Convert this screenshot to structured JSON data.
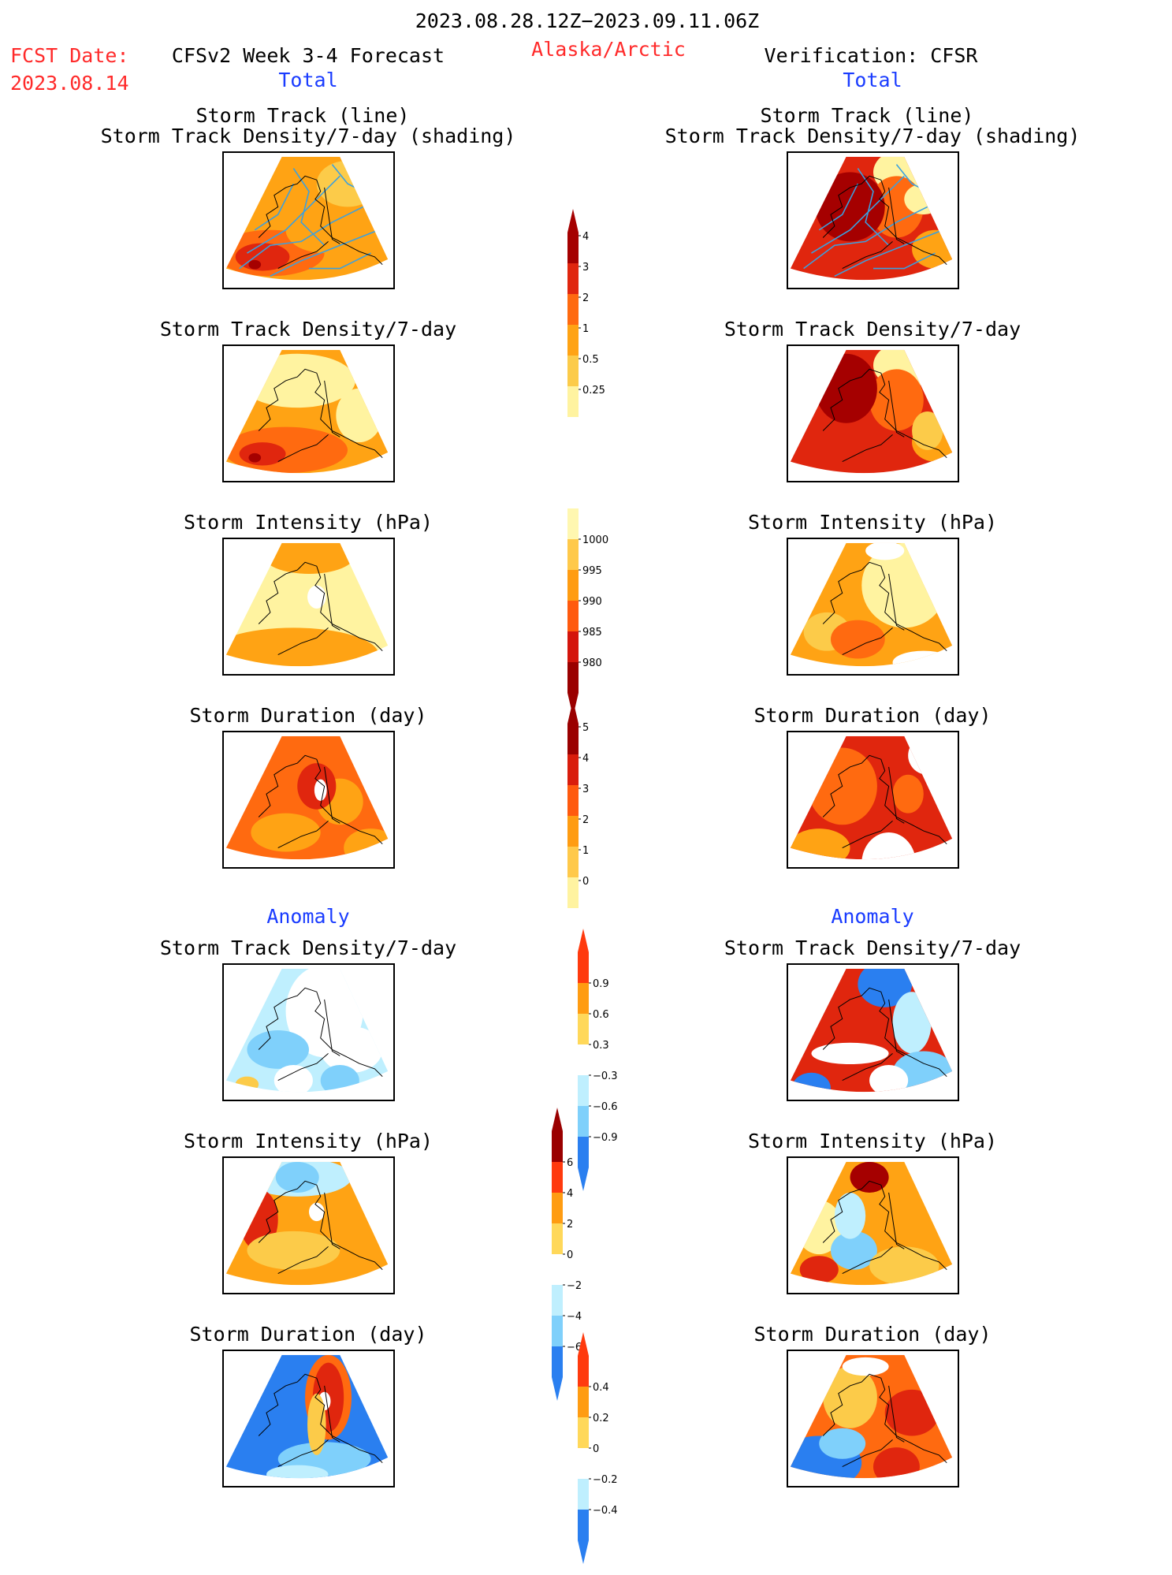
{
  "header": {
    "period": "2023.08.28.12Z−2023.09.11.06Z",
    "fcst_label": "FCST Date:",
    "fcst_date": "2023.08.14",
    "model": "CFSv2 Week 3-4 Forecast",
    "region": "Alaska/Arctic",
    "verification": "Verification: CFSR"
  },
  "sections": {
    "total_left": "Total",
    "total_right": "Total",
    "anomaly_left": "Anomaly",
    "anomaly_right": "Anomaly"
  },
  "titles": {
    "track_line": "Storm Track (line)",
    "track_shading": "Storm Track Density/7-day (shading)",
    "density": "Storm Track Density/7-day",
    "intensity": "Storm Intensity (hPa)",
    "duration": "Storm Duration (day)"
  },
  "colorbars": {
    "density_total": {
      "labels": [
        "4",
        "3",
        "2",
        "1",
        "0.5",
        "0.25"
      ],
      "colors": [
        "#a50000",
        "#e0260e",
        "#ff6a10",
        "#ffa314",
        "#fccb49",
        "#fff3a0"
      ]
    },
    "intensity_total": {
      "labels": [
        "1000",
        "995",
        "990",
        "985",
        "980"
      ],
      "colors": [
        "#fff7b0",
        "#ffc94a",
        "#ff9c12",
        "#ff5a0e",
        "#d4150c",
        "#9a0000"
      ]
    },
    "duration_total": {
      "labels": [
        "5",
        "4",
        "3",
        "2",
        "1",
        "0"
      ],
      "colors": [
        "#9a0000",
        "#d91d0c",
        "#ff5a0e",
        "#ff9c12",
        "#ffc94a",
        "#fff3a0"
      ]
    },
    "density_anom": {
      "labels": [
        "0.9",
        "0.6",
        "0.3",
        "−0.3",
        "−0.6",
        "−0.9"
      ],
      "colors": [
        "#ff3a0e",
        "#ff9c12",
        "#ffd85a",
        "#ffffff",
        "#bfeffe",
        "#7fd0fb",
        "#2a7ff0"
      ]
    },
    "intensity_anom": {
      "labels": [
        "6",
        "4",
        "2",
        "0",
        "−2",
        "−4",
        "−6"
      ],
      "colors": [
        "#9a0000",
        "#ff3a0e",
        "#ff9c12",
        "#ffd85a",
        "#ffffff",
        "#bfeffe",
        "#7fd0fb",
        "#2a7ff0"
      ]
    },
    "duration_anom": {
      "labels": [
        "0.4",
        "0.2",
        "0",
        "−0.2",
        "−0.4"
      ],
      "colors": [
        "#ff3a0e",
        "#ff9c12",
        "#ffd85a",
        "#ffffff",
        "#bfeffe",
        "#2a7ff0"
      ]
    }
  },
  "chart_data": [
    {
      "type": "heatmap",
      "title": "Storm Track (line) / Storm Track Density/7-day (shading)",
      "column": "CFSv2 Week 3-4 Forecast",
      "section": "Total"
    },
    {
      "type": "heatmap",
      "title": "Storm Track Density/7-day",
      "column": "CFSv2 Week 3-4 Forecast",
      "section": "Total",
      "colorbar": [
        "0.25",
        "0.5",
        "1",
        "2",
        "3",
        "4"
      ]
    },
    {
      "type": "heatmap",
      "title": "Storm Intensity (hPa)",
      "column": "CFSv2 Week 3-4 Forecast",
      "section": "Total",
      "colorbar": [
        "980",
        "985",
        "990",
        "995",
        "1000"
      ]
    },
    {
      "type": "heatmap",
      "title": "Storm Duration (day)",
      "column": "CFSv2 Week 3-4 Forecast",
      "section": "Total",
      "colorbar": [
        "0",
        "1",
        "2",
        "3",
        "4",
        "5"
      ]
    },
    {
      "type": "heatmap",
      "title": "Storm Track Density/7-day",
      "column": "CFSv2 Week 3-4 Forecast",
      "section": "Anomaly",
      "colorbar": [
        "-0.9",
        "-0.6",
        "-0.3",
        "0.3",
        "0.6",
        "0.9"
      ]
    },
    {
      "type": "heatmap",
      "title": "Storm Intensity (hPa)",
      "column": "CFSv2 Week 3-4 Forecast",
      "section": "Anomaly",
      "colorbar": [
        "-6",
        "-4",
        "-2",
        "0",
        "2",
        "4",
        "6"
      ]
    },
    {
      "type": "heatmap",
      "title": "Storm Duration (day)",
      "column": "CFSv2 Week 3-4 Forecast",
      "section": "Anomaly",
      "colorbar": [
        "-0.4",
        "-0.2",
        "0",
        "0.2",
        "0.4"
      ]
    },
    {
      "type": "heatmap",
      "title": "Storm Track (line) / Storm Track Density/7-day (shading)",
      "column": "Verification: CFSR",
      "section": "Total"
    },
    {
      "type": "heatmap",
      "title": "Storm Track Density/7-day",
      "column": "Verification: CFSR",
      "section": "Total"
    },
    {
      "type": "heatmap",
      "title": "Storm Intensity (hPa)",
      "column": "Verification: CFSR",
      "section": "Total"
    },
    {
      "type": "heatmap",
      "title": "Storm Duration (day)",
      "column": "Verification: CFSR",
      "section": "Total"
    },
    {
      "type": "heatmap",
      "title": "Storm Track Density/7-day",
      "column": "Verification: CFSR",
      "section": "Anomaly"
    },
    {
      "type": "heatmap",
      "title": "Storm Intensity (hPa)",
      "column": "Verification: CFSR",
      "section": "Anomaly"
    },
    {
      "type": "heatmap",
      "title": "Storm Duration (day)",
      "column": "Verification: CFSR",
      "section": "Anomaly"
    }
  ]
}
